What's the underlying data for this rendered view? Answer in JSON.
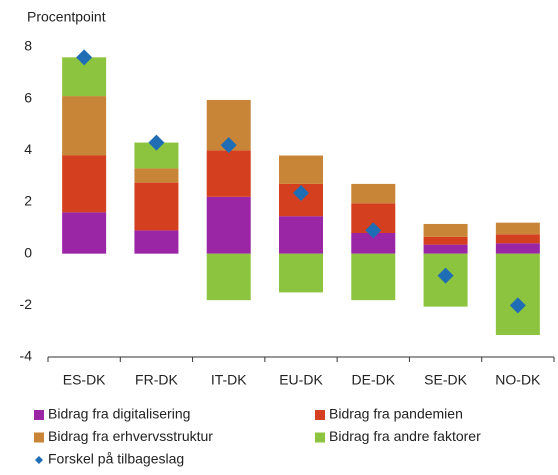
{
  "chart_data": {
    "type": "bar",
    "stacked": true,
    "y_label": "Procentpoint",
    "categories": [
      "ES-DK",
      "FR-DK",
      "IT-DK",
      "EU-DK",
      "DE-DK",
      "SE-DK",
      "NO-DK"
    ],
    "series": [
      {
        "name": "Bidrag fra digitalisering",
        "color": "#9a26a6",
        "values": [
          1.6,
          0.9,
          2.2,
          1.45,
          0.8,
          0.35,
          0.4
        ]
      },
      {
        "name": "Bidrag fra pandemien",
        "color": "#d4401f",
        "values": [
          2.2,
          1.85,
          1.8,
          1.25,
          1.15,
          0.3,
          0.35
        ]
      },
      {
        "name": "Bidrag fra erhvervsstruktur",
        "color": "#c98537",
        "values": [
          2.3,
          0.55,
          1.95,
          1.1,
          0.75,
          0.5,
          0.45
        ]
      },
      {
        "name": "Bidrag fra andre faktorer",
        "color": "#8cc33f",
        "values": [
          1.5,
          1.0,
          -1.8,
          -1.5,
          -1.8,
          -2.05,
          -3.15
        ]
      },
      {
        "name": "Forskel på tilbageslag",
        "color": "#1f6db5",
        "type": "scatter",
        "values": [
          7.6,
          4.3,
          4.2,
          2.35,
          0.9,
          -0.85,
          -2.0
        ]
      }
    ],
    "ylim": [
      -4,
      8
    ],
    "yticks": [
      -4,
      -2,
      0,
      2,
      4,
      6,
      8
    ],
    "grid": false
  }
}
